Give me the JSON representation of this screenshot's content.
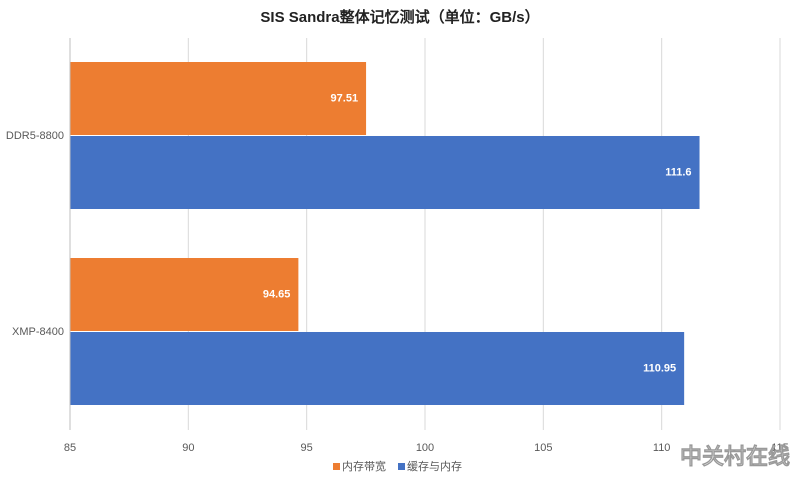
{
  "chart_data": {
    "type": "bar",
    "orientation": "horizontal",
    "title": "SIS Sandra整体记忆测试（单位：GB/s）",
    "categories": [
      "DDR5-8800",
      "XMP-8400"
    ],
    "series": [
      {
        "name": "内存带宽",
        "color": "#ed7d31",
        "values": [
          97.51,
          94.65
        ]
      },
      {
        "name": "缓存与内存",
        "color": "#4472c4",
        "values": [
          111.6,
          110.95
        ]
      }
    ],
    "xlim": [
      85,
      115
    ],
    "xticks": [
      85,
      90,
      95,
      100,
      105,
      110,
      115
    ],
    "grid": true,
    "legend": "bottom",
    "watermark": "中关村在线"
  }
}
